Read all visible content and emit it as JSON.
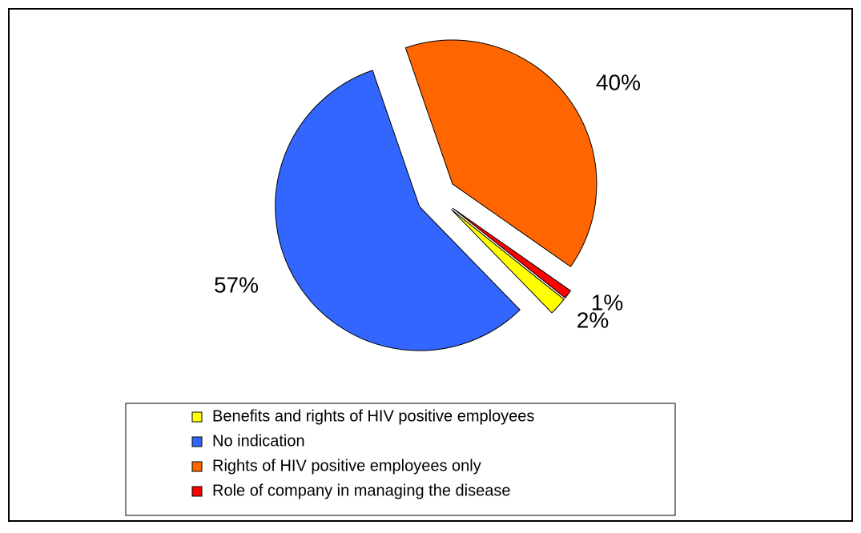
{
  "chart_data": {
    "type": "pie",
    "categories": [
      "Benefits and rights of HIV positive employees",
      "No indication",
      "Rights of HIV positive employees only",
      "Role of company in managing the disease"
    ],
    "values": [
      2,
      57,
      40,
      1
    ],
    "value_labels": [
      "2%",
      "57%",
      "40%",
      "1%"
    ],
    "colors": [
      "#ffff00",
      "#3366ff",
      "#ff6600",
      "#ff0000"
    ],
    "legend": "bottom"
  }
}
